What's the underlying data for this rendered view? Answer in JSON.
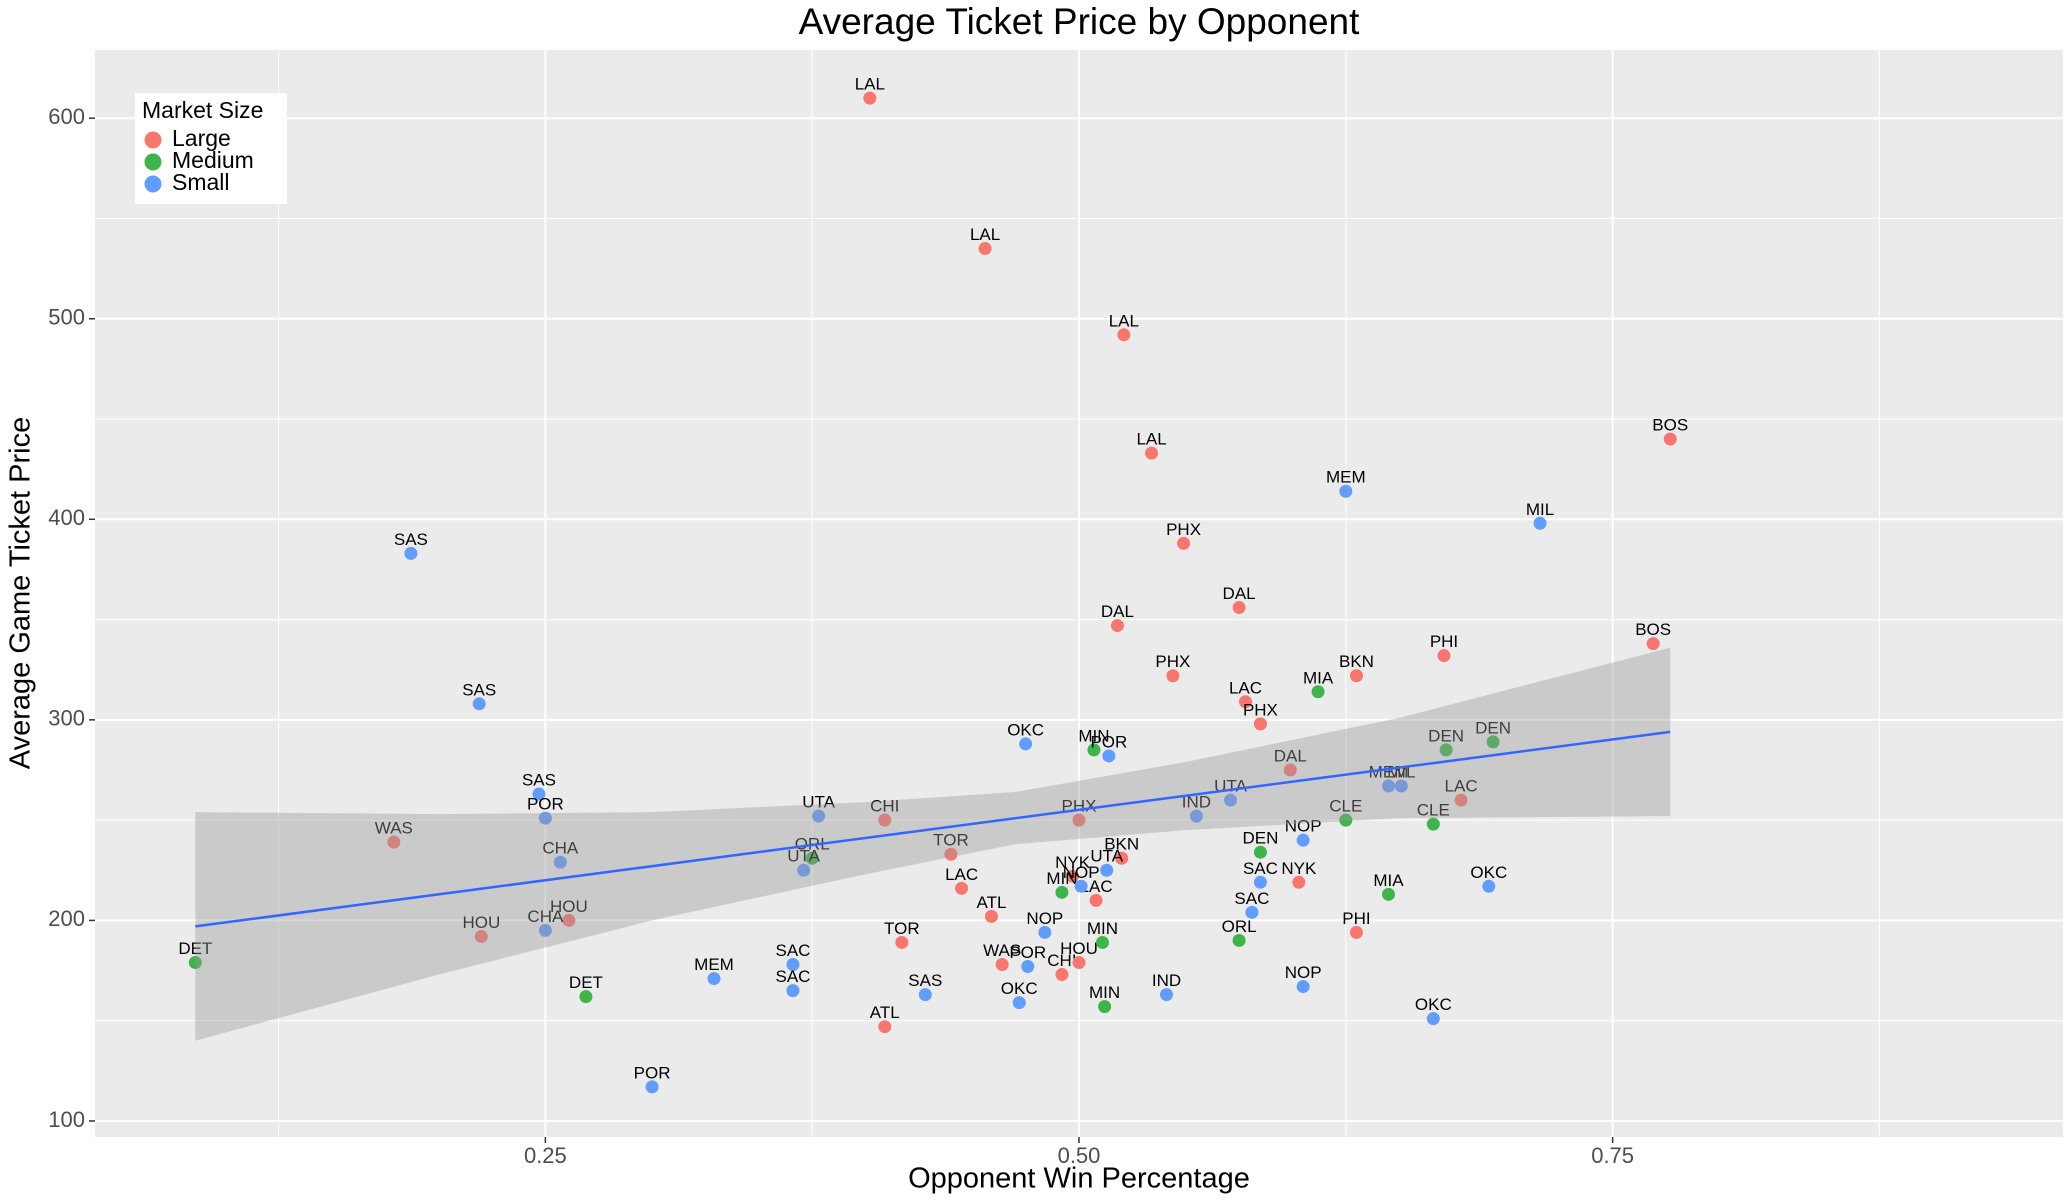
{
  "chart_data": {
    "type": "scatter",
    "title": "Average Ticket Price by Opponent",
    "x_label": "Opponent Win Percentage",
    "y_label": "Average Game Ticket Price",
    "legend_title": "Market Size",
    "legend_position": "top-left",
    "grid": true,
    "xlim": [
      0.039,
      0.961
    ],
    "ylim": [
      92,
      634
    ],
    "xticks": [
      0.25,
      {
        "value": 0.5,
        "label": "0.50"
      },
      0.75
    ],
    "yticks": [
      100,
      200,
      300,
      400,
      500,
      600
    ],
    "series": [
      {
        "name": "Large",
        "color": "#F8766D",
        "labels": [
          "LAL",
          "LAL",
          "LAL",
          "LAL",
          "PHX",
          "DAL",
          "DAL",
          "PHX",
          "LAC",
          "PHX",
          "BKN",
          "PHI",
          "BOS",
          "BOS",
          "DAL",
          "LAC",
          "WAS",
          "CHI",
          "TOR",
          "PHX",
          "LAC",
          "HOU",
          "HOU",
          "ATL",
          "TOR",
          "WAS",
          "CHI",
          "HOU",
          "ATL",
          "NYK",
          "BKN",
          "LAC",
          "NYK",
          "PHI"
        ],
        "x": [
          0.402,
          0.456,
          0.521,
          0.534,
          0.549,
          0.575,
          0.518,
          0.544,
          0.578,
          0.585,
          0.63,
          0.671,
          0.777,
          0.769,
          0.599,
          0.679,
          0.179,
          0.409,
          0.44,
          0.5,
          0.445,
          0.22,
          0.261,
          0.459,
          0.417,
          0.464,
          0.492,
          0.5,
          0.409,
          0.497,
          0.52,
          0.508,
          0.603,
          0.63
        ],
        "values": [
          610,
          535,
          492,
          433,
          388,
          356,
          347,
          322,
          309,
          298,
          322,
          332,
          440,
          338,
          275,
          260,
          239,
          250,
          233,
          250,
          216,
          192,
          200,
          202,
          189,
          178,
          173,
          179,
          147,
          222,
          231,
          210,
          219,
          194
        ]
      },
      {
        "name": "Medium",
        "color": "#3DB54A",
        "labels": [
          "DET",
          "DET",
          "ORL",
          "MIN",
          "MIN",
          "MIN",
          "MIN",
          "MIA",
          "CLE",
          "CLE",
          "DEN",
          "DEN",
          "DEN",
          "ORL",
          "MIA"
        ],
        "x": [
          0.086,
          0.269,
          0.375,
          0.507,
          0.492,
          0.511,
          0.512,
          0.612,
          0.625,
          0.666,
          0.672,
          0.694,
          0.585,
          0.575,
          0.645
        ],
        "values": [
          179,
          162,
          231,
          285,
          214,
          189,
          157,
          314,
          250,
          248,
          285,
          289,
          234,
          190,
          213
        ]
      },
      {
        "name": "Small",
        "color": "#619CFF",
        "labels": [
          "SAS",
          "SAS",
          "SAS",
          "POR",
          "CHA",
          "CHA",
          "MEM",
          "POR",
          "SAC",
          "SAC",
          "UTA",
          "UTA",
          "SAS",
          "OKC",
          "NOP",
          "POR",
          "OKC",
          "POR",
          "UTA",
          "NOP",
          "IND",
          "UTA",
          "SAC",
          "SAC",
          "IND",
          "NOP",
          "NOP",
          "MEM",
          "MIL",
          "MEM",
          "MIL",
          "OKC",
          "OKC"
        ],
        "x": [
          0.187,
          0.219,
          0.247,
          0.25,
          0.257,
          0.25,
          0.329,
          0.3,
          0.366,
          0.366,
          0.378,
          0.371,
          0.428,
          0.475,
          0.484,
          0.476,
          0.472,
          0.514,
          0.513,
          0.501,
          0.555,
          0.571,
          0.585,
          0.581,
          0.541,
          0.605,
          0.605,
          0.625,
          0.716,
          0.645,
          0.651,
          0.692,
          0.666
        ],
        "values": [
          383,
          308,
          263,
          251,
          229,
          195,
          171,
          117,
          178,
          165,
          252,
          225,
          163,
          288,
          194,
          177,
          159,
          282,
          225,
          217,
          252,
          260,
          219,
          204,
          163,
          240,
          167,
          414,
          398,
          267,
          267,
          217,
          151
        ]
      }
    ],
    "trend": {
      "color": "#3366FF",
      "x": [
        0.086,
        0.777
      ],
      "y": [
        197,
        294
      ]
    },
    "band": {
      "x": [
        0.086,
        0.2,
        0.3,
        0.4,
        0.47,
        0.55,
        0.65,
        0.777
      ],
      "lower": [
        140,
        173,
        200,
        223,
        238,
        245,
        251,
        252
      ],
      "upper": [
        254,
        253,
        254,
        259,
        264,
        279,
        301,
        336
      ]
    }
  }
}
